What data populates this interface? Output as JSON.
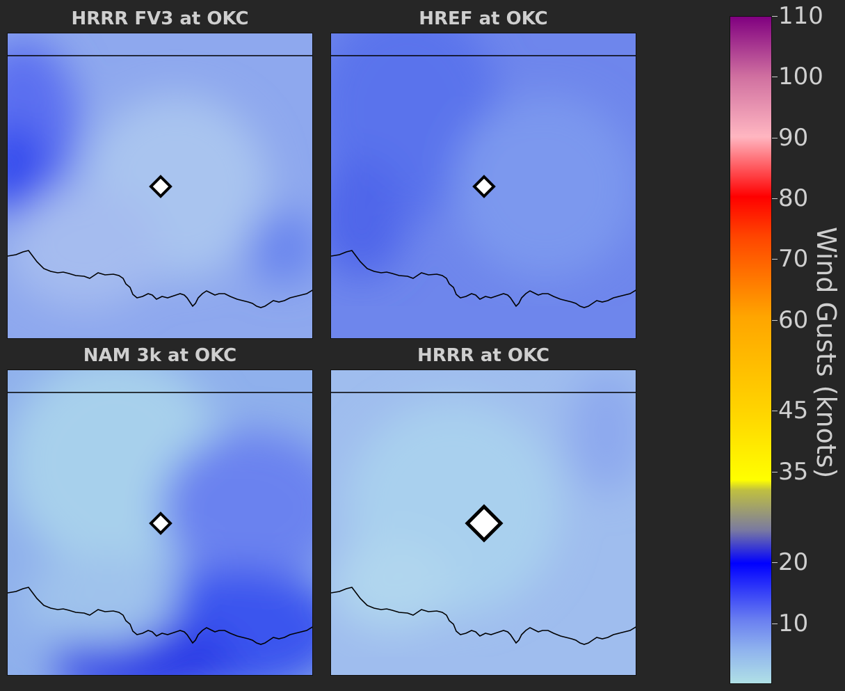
{
  "panels": [
    {
      "id": "p1",
      "title": "HRRR FV3 at OKC",
      "base": "#8ea8ee",
      "blotches": [
        [
          "#5b6ff0",
          0.05,
          0.3,
          0.18,
          0.28
        ],
        [
          "#3348ee",
          0.02,
          0.45,
          0.1,
          0.16
        ],
        [
          "#a9c4ef",
          0.55,
          0.5,
          0.3,
          0.3
        ],
        [
          "#a5bcef",
          0.25,
          0.7,
          0.25,
          0.2
        ],
        [
          "#6a86ee",
          0.9,
          0.7,
          0.12,
          0.12
        ]
      ],
      "marker_size": "small"
    },
    {
      "id": "p2",
      "title": "HREF at OKC",
      "base": "#6e86ec",
      "blotches": [
        [
          "#5a73ec",
          0.25,
          0.25,
          0.3,
          0.35
        ],
        [
          "#4f66ea",
          0.1,
          0.6,
          0.15,
          0.2
        ],
        [
          "#7c98ee",
          0.7,
          0.5,
          0.3,
          0.3
        ]
      ],
      "marker_size": "small"
    },
    {
      "id": "p3",
      "title": "NAM 3k at OKC",
      "base": "#8fb0ec",
      "blotches": [
        [
          "#a7d0ec",
          0.35,
          0.3,
          0.35,
          0.35
        ],
        [
          "#6b82ef",
          0.8,
          0.45,
          0.3,
          0.25
        ],
        [
          "#3a55ee",
          0.75,
          0.85,
          0.35,
          0.2
        ],
        [
          "#2a3ae6",
          0.45,
          0.95,
          0.3,
          0.12
        ],
        [
          "#9fc2ec",
          0.3,
          0.75,
          0.25,
          0.15
        ]
      ],
      "marker_size": "small"
    },
    {
      "id": "p4",
      "title": "HRRR at OKC",
      "base": "#9fbdee",
      "blotches": [
        [
          "#a9d0ee",
          0.4,
          0.45,
          0.35,
          0.35
        ],
        [
          "#8da9ee",
          0.9,
          0.2,
          0.12,
          0.2
        ],
        [
          "#b0d6ee",
          0.2,
          0.7,
          0.2,
          0.15
        ]
      ],
      "marker_size": "large"
    }
  ],
  "colorbar": {
    "label": "Wind Gusts (knots)",
    "ticks": [
      {
        "value": "110",
        "frac": 1.0
      },
      {
        "value": "100",
        "frac": 0.909
      },
      {
        "value": "90",
        "frac": 0.818
      },
      {
        "value": "80",
        "frac": 0.727
      },
      {
        "value": "70",
        "frac": 0.636
      },
      {
        "value": "60",
        "frac": 0.545
      },
      {
        "value": "45",
        "frac": 0.409
      },
      {
        "value": "35",
        "frac": 0.318
      },
      {
        "value": "20",
        "frac": 0.182
      },
      {
        "value": "10",
        "frac": 0.091
      }
    ]
  },
  "colors": {
    "background": "#262626",
    "text": "#cfcfcf",
    "border_line": "#000000",
    "marker_fill": "#ffffff",
    "marker_edge": "#000000"
  }
}
